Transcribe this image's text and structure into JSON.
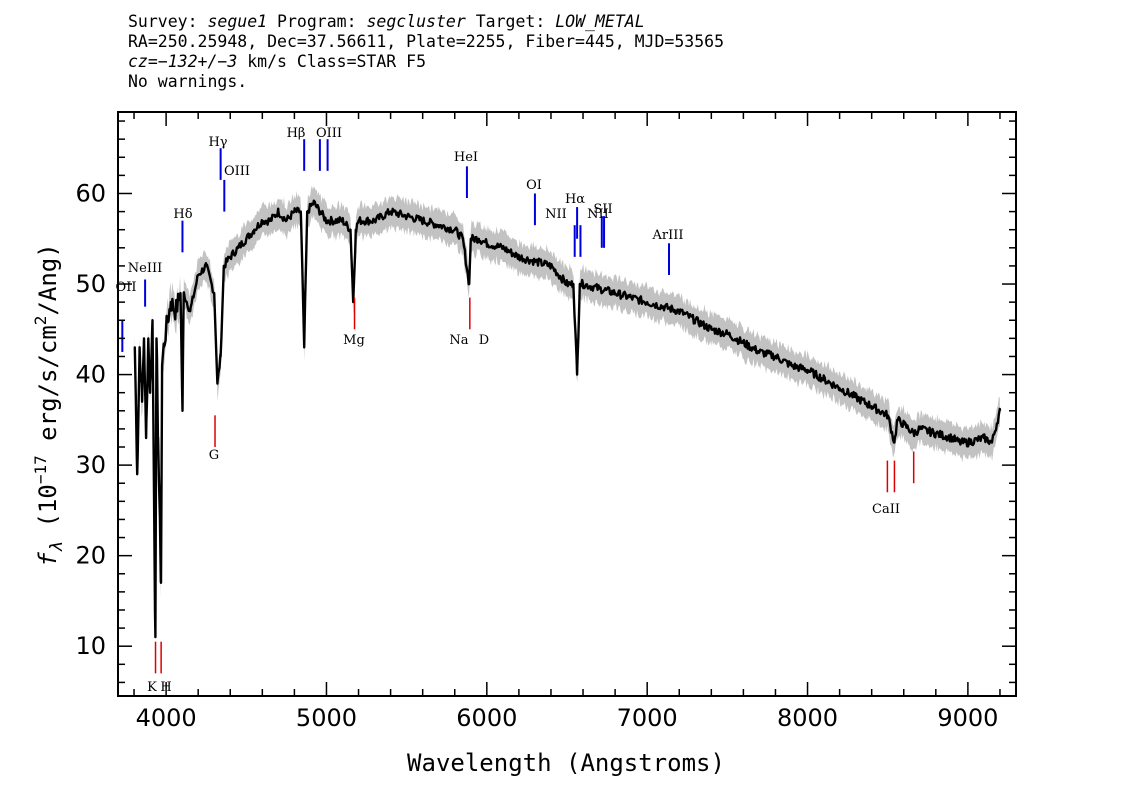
{
  "header": {
    "survey_label": "Survey:",
    "survey": "segue1",
    "program_label": "Program:",
    "program": "segcluster",
    "target_label": "Target:",
    "target": "LOW_METAL",
    "line2": "RA=250.25948, Dec=37.56611, Plate=2255, Fiber=445, MJD=53565",
    "cz_label": "cz=",
    "cz_value": "−132+/−3",
    "cz_rest": " km/s Class=STAR F5",
    "line4": "No warnings."
  },
  "chart_data": {
    "type": "line",
    "xlabel": "Wavelength (Angstroms)",
    "ylabel_parts": [
      "f",
      "λ",
      " (10",
      "−17",
      " erg/s/cm",
      "2",
      "/Ang)"
    ],
    "xlim": [
      3700,
      9300
    ],
    "ylim": [
      4.5,
      69
    ],
    "x_ticks": [
      4000,
      5000,
      6000,
      7000,
      8000,
      9000
    ],
    "y_ticks": [
      10,
      20,
      30,
      40,
      50,
      60
    ],
    "series": [
      {
        "color": "#000000",
        "x": [
          3805,
          3820,
          3835,
          3850,
          3862,
          3875,
          3889,
          3900,
          3915,
          3933,
          3940,
          3950,
          3968,
          3975,
          3985,
          4000,
          4030,
          4060,
          4090,
          4102,
          4110,
          4150,
          4200,
          4250,
          4300,
          4320,
          4340,
          4360,
          4400,
          4450,
          4500,
          4550,
          4600,
          4650,
          4700,
          4750,
          4800,
          4840,
          4861,
          4880,
          4920,
          4960,
          5000,
          5100,
          5150,
          5167,
          5183,
          5200,
          5300,
          5400,
          5500,
          5600,
          5700,
          5800,
          5850,
          5890,
          5900,
          5950,
          6000,
          6100,
          6200,
          6300,
          6400,
          6500,
          6540,
          6563,
          6580,
          6600,
          6700,
          6800,
          6900,
          7000,
          7100,
          7200,
          7300,
          7400,
          7500,
          7600,
          7700,
          7800,
          7900,
          8000,
          8100,
          8200,
          8300,
          8400,
          8500,
          8542,
          8560,
          8600,
          8662,
          8700,
          8800,
          8900,
          8950,
          9000,
          9100,
          9150,
          9200
        ],
        "values": [
          43,
          29,
          43,
          37,
          44,
          33,
          44,
          38,
          46,
          11,
          44,
          33,
          17,
          41,
          43,
          45,
          48,
          47,
          49,
          36,
          49,
          47,
          51,
          52,
          49,
          39,
          42,
          52,
          53,
          54,
          55,
          56,
          57,
          57,
          58,
          57,
          58,
          58,
          43,
          58,
          59,
          58,
          57,
          57,
          56,
          48,
          56,
          57,
          57,
          58,
          57.5,
          57,
          56.5,
          56,
          55,
          50,
          55,
          55,
          54.5,
          54,
          53,
          52.5,
          52,
          50,
          50,
          40,
          50,
          50,
          49.5,
          49,
          48.5,
          48,
          47.5,
          47,
          46,
          45,
          44.5,
          43.5,
          42.5,
          42,
          41,
          40.5,
          39.5,
          38.5,
          37.5,
          36.5,
          35.5,
          32.5,
          35,
          34.5,
          33.5,
          34,
          33.5,
          33,
          32.5,
          32.5,
          33,
          32.5,
          36
        ]
      }
    ],
    "emission_lines": [
      {
        "label": "OII",
        "x": 3727,
        "top": 46,
        "bottom": 42.5
      },
      {
        "label": "NeIII",
        "x": 3869,
        "top": 50.5,
        "bottom": 47.5
      },
      {
        "label": "Hδ",
        "x": 4102,
        "top": 57,
        "bottom": 53.5
      },
      {
        "label": "Hγ",
        "x": 4340,
        "top": 65,
        "bottom": 61.5
      },
      {
        "label": "OIII",
        "x": 4363,
        "top": 61.5,
        "bottom": 58
      },
      {
        "label": "Hβ",
        "x": 4861,
        "top": 66,
        "bottom": 62.5
      },
      {
        "label": "OIII",
        "x": 4959,
        "top": 66,
        "bottom": 62.5
      },
      {
        "label": "OIII",
        "x": 5007,
        "top": 66,
        "bottom": 62.5
      },
      {
        "label": "HeI",
        "x": 5876,
        "top": 63,
        "bottom": 59.5
      },
      {
        "label": "OI",
        "x": 6300,
        "top": 60,
        "bottom": 56.5
      },
      {
        "label": "NII",
        "x": 6548,
        "top": 56.5,
        "bottom": 53
      },
      {
        "label": "Hα",
        "x": 6563,
        "top": 58.5,
        "bottom": 55
      },
      {
        "label": "NII",
        "x": 6584,
        "top": 56.5,
        "bottom": 53
      },
      {
        "label": "SII",
        "x": 6717,
        "top": 57.5,
        "bottom": 54
      },
      {
        "label": "SII",
        "x": 6731,
        "top": 57.5,
        "bottom": 54
      },
      {
        "label": "ArIII",
        "x": 7136,
        "top": 54.5,
        "bottom": 51
      }
    ],
    "absorption_lines": [
      {
        "label": "K",
        "x": 3934,
        "top": 10.5,
        "bottom": 7
      },
      {
        "label": "H",
        "x": 3969,
        "top": 10.5,
        "bottom": 7
      },
      {
        "label": "G",
        "x": 4305,
        "top": 35.5,
        "bottom": 32
      },
      {
        "label": "Mg",
        "x": 5175,
        "top": 48.5,
        "bottom": 45
      },
      {
        "label": "Na",
        "x": 5894,
        "top": 48.5,
        "bottom": 45
      },
      {
        "label": "CaII",
        "x": 8498,
        "top": 30.5,
        "bottom": 27
      },
      {
        "label": "CaII",
        "x": 8542,
        "top": 30.5,
        "bottom": 27
      },
      {
        "label": "CaII",
        "x": 8662,
        "top": 31.5,
        "bottom": 28
      }
    ],
    "emission_labels": [
      "OII",
      "NeIII",
      "Hδ",
      "Hγ",
      "OIII",
      "Hβ",
      "OIII",
      "HeI",
      "OI",
      "NII",
      "Hα",
      "NII",
      "SII",
      "ArIII"
    ],
    "absorption_labels": [
      "K",
      "H",
      "G",
      "Mg",
      "Na",
      "D",
      "CaII"
    ],
    "colors": {
      "spectrum": "#000000",
      "error_band": "#bbbbbb",
      "emission": "#0000dd",
      "absorption": "#dd0000"
    }
  }
}
